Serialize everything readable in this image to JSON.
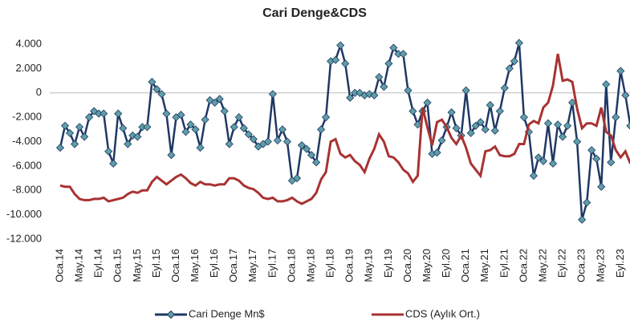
{
  "chart_data": {
    "type": "line",
    "title": "Cari Denge&CDS",
    "categories": [
      "Oca.14",
      null,
      null,
      null,
      "May.14",
      null,
      null,
      null,
      "Eyl.14",
      null,
      null,
      null,
      "Oca.15",
      null,
      null,
      null,
      "May.15",
      null,
      null,
      null,
      "Eyl.15",
      null,
      null,
      null,
      "Oca.16",
      null,
      null,
      null,
      "May.16",
      null,
      null,
      null,
      "Eyl.16",
      null,
      null,
      null,
      "Oca.17",
      null,
      null,
      null,
      "May.17",
      null,
      null,
      null,
      "Eyl.17",
      null,
      null,
      null,
      "Oca.18",
      null,
      null,
      null,
      "May.18",
      null,
      null,
      null,
      "Eyl.18",
      null,
      null,
      null,
      "Oca.19",
      null,
      null,
      null,
      "May.19",
      null,
      null,
      null,
      "Eyl.19",
      null,
      null,
      null,
      "Oca.20",
      null,
      null,
      null,
      "May.20",
      null,
      null,
      null,
      "Eyl.20",
      null,
      null,
      null,
      "Oca.21",
      null,
      null,
      null,
      "May.21",
      null,
      null,
      null,
      "Eyl.21",
      null,
      null,
      null,
      "Oca.22",
      null,
      null,
      null,
      "May.22",
      null,
      null,
      null,
      "Eyl.22",
      null,
      null,
      null,
      "Oca.23",
      null,
      null,
      null,
      "May.23",
      null,
      null,
      null,
      "Eyl.23",
      null,
      null
    ],
    "series": [
      {
        "name": "Cari Denge Mn$",
        "color": "#1f3864",
        "marker_color": "#5f9ea8",
        "values": [
          -4500,
          -2700,
          -3300,
          -4200,
          -2800,
          -3600,
          -2000,
          -1500,
          -1700,
          -1700,
          -4800,
          -5800,
          -1700,
          -2900,
          -4200,
          -3500,
          -3600,
          -2800,
          -2800,
          900,
          300,
          -100,
          -1700,
          -5100,
          -2000,
          -1800,
          -3200,
          -2600,
          -3000,
          -4500,
          -2200,
          -600,
          -800,
          -500,
          -1500,
          -4200,
          -2800,
          -2000,
          -2900,
          -3400,
          -3800,
          -4400,
          -4200,
          -4000,
          -100,
          -3900,
          -3000,
          -4000,
          -7200,
          -7000,
          -4300,
          -4600,
          -5100,
          -5700,
          -3000,
          -2000,
          2600,
          2700,
          3900,
          2400,
          -400,
          0,
          0,
          -200,
          -100,
          -200,
          1300,
          500,
          2400,
          3700,
          3200,
          3200,
          200,
          -1500,
          -2600,
          -1500,
          -800,
          -5000,
          -4900,
          -3900,
          -2800,
          -1600,
          -2900,
          -3500,
          200,
          -3300,
          -2700,
          -2400,
          -3000,
          -1000,
          -3100,
          -1500,
          400,
          2000,
          2600,
          4100,
          -2000,
          -3200,
          -6800,
          -5300,
          -5600,
          -2500,
          -5800,
          -2600,
          -3600,
          -2700,
          -800,
          -4000,
          -10400,
          -9000,
          -4700,
          -5400,
          -7700,
          700,
          -5700,
          -2000,
          1800,
          -200,
          -2700
        ]
      },
      {
        "name": "CDS (Aylık Ort.)",
        "color": "#a83232",
        "values": [
          -7600,
          -7700,
          -7700,
          -8300,
          -8700,
          -8800,
          -8800,
          -8700,
          -8700,
          -8600,
          -8900,
          -8800,
          -8700,
          -8600,
          -8300,
          -8100,
          -8200,
          -8000,
          -8000,
          -7300,
          -6900,
          -7200,
          -7500,
          -7200,
          -6900,
          -6700,
          -7000,
          -7400,
          -7600,
          -7300,
          -7500,
          -7500,
          -7600,
          -7500,
          -7500,
          -7000,
          -7000,
          -7200,
          -7600,
          -7800,
          -7900,
          -8200,
          -8600,
          -8700,
          -8600,
          -8900,
          -8900,
          -8800,
          -8600,
          -8900,
          -9100,
          -8900,
          -8700,
          -8200,
          -7100,
          -6500,
          -4000,
          -3800,
          -5000,
          -5300,
          -5100,
          -5600,
          -5900,
          -6500,
          -5400,
          -4600,
          -3400,
          -4000,
          -5200,
          -5300,
          -5700,
          -6300,
          -6600,
          -7300,
          -6800,
          -1200,
          -2800,
          -4300,
          -2400,
          -2200,
          -2800,
          -3700,
          -4200,
          -3500,
          -4500,
          -5800,
          -6300,
          -6800,
          -4800,
          -4700,
          -4400,
          -5100,
          -5200,
          -5200,
          -5000,
          -4200,
          -4200,
          -2600,
          -2300,
          -2500,
          -1200,
          -800,
          600,
          3200,
          1000,
          1100,
          900,
          -1300,
          -2900,
          -2500,
          -2500,
          -2700,
          -1200,
          -3200,
          -3500,
          -4700,
          -5300,
          -4800,
          -5800
        ]
      }
    ],
    "ylim": [
      -12000,
      4000
    ],
    "yticks": [
      {
        "value": -12000,
        "label": "-12.000"
      },
      {
        "value": -10000,
        "label": "-10.000"
      },
      {
        "value": -8000,
        "label": "-8.000"
      },
      {
        "value": -6000,
        "label": "-6.000"
      },
      {
        "value": -4000,
        "label": "-4.000"
      },
      {
        "value": -2000,
        "label": "-2.000"
      },
      0,
      {
        "value": 2000,
        "label": "2.000"
      },
      {
        "value": 4000,
        "label": "4.000"
      }
    ],
    "grid": false,
    "legend": "bottom"
  }
}
